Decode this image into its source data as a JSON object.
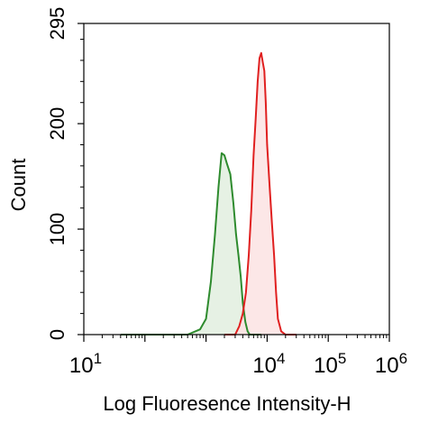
{
  "chart_data": {
    "type": "area",
    "xlabel": "Log Fluoresence Intensity-H",
    "ylabel": "Count",
    "x_scale": "log",
    "xlim": [
      10,
      1000000
    ],
    "ylim": [
      0,
      295
    ],
    "y_ticks": [
      0,
      100,
      200,
      295
    ],
    "y_tick_labels": [
      "0",
      "100",
      "200",
      "295"
    ],
    "x_ticks": [
      {
        "value": 10,
        "base": "10",
        "exp": "1"
      },
      {
        "value": 10000,
        "base": "10",
        "exp": "4"
      },
      {
        "value": 100000,
        "base": "10",
        "exp": "5"
      },
      {
        "value": 1000000,
        "base": "10",
        "exp": "6"
      }
    ],
    "grid": false,
    "legend": "none",
    "series": [
      {
        "color": "#2e8b2e",
        "fill": "#e2efdf",
        "x": [
          40,
          500,
          800,
          1000,
          1200,
          1400,
          1600,
          1800,
          2000,
          2200,
          2500,
          2800,
          3100,
          3400,
          3700,
          4000,
          4400,
          4800,
          5200,
          5600,
          6000,
          6500,
          7000,
          7500,
          8000
        ],
        "y": [
          0,
          0,
          5,
          15,
          50,
          95,
          140,
          172,
          170,
          162,
          152,
          125,
          95,
          75,
          55,
          30,
          12,
          3,
          0,
          0,
          0,
          0,
          0,
          0,
          0
        ]
      },
      {
        "color": "#e02020",
        "fill": "#fbe3e3",
        "x": [
          2000,
          3000,
          3500,
          4000,
          4500,
          5000,
          5500,
          6000,
          6500,
          7000,
          7500,
          8000,
          8500,
          9000,
          9500,
          10000,
          11000,
          12000,
          13000,
          14000,
          15000,
          17000,
          20000,
          30000
        ],
        "y": [
          0,
          0,
          8,
          20,
          40,
          75,
          118,
          170,
          205,
          240,
          262,
          267,
          258,
          250,
          220,
          180,
          140,
          105,
          75,
          40,
          15,
          3,
          0,
          0
        ]
      }
    ]
  }
}
